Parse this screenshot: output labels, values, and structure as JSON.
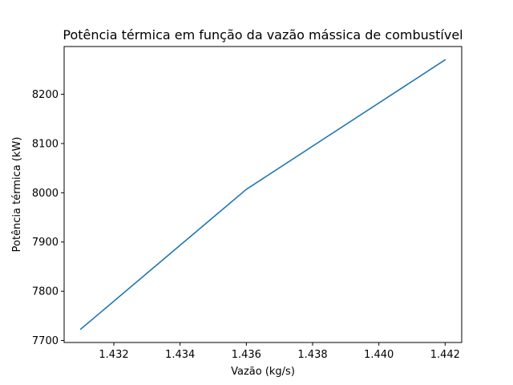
{
  "chart_data": {
    "type": "line",
    "title": "Potência térmica em função da vazão mássica de combustível",
    "xlabel": "Vazão (kg/s)",
    "ylabel": "Potência térmica (kW)",
    "xlim": [
      1.4305,
      1.4425
    ],
    "ylim": [
      7696,
      8297
    ],
    "xticks": [
      1.432,
      1.434,
      1.436,
      1.438,
      1.44,
      1.442
    ],
    "xtick_labels": [
      "1.432",
      "1.434",
      "1.436",
      "1.438",
      "1.440",
      "1.442"
    ],
    "yticks": [
      7700,
      7800,
      7900,
      8000,
      8100,
      8200
    ],
    "ytick_labels": [
      "7700",
      "7800",
      "7900",
      "8000",
      "8100",
      "8200"
    ],
    "grid": false,
    "series": [
      {
        "color": "#1f77b4",
        "x": [
          1.431,
          1.436,
          1.442
        ],
        "y": [
          7723,
          8007,
          8270
        ]
      }
    ]
  }
}
